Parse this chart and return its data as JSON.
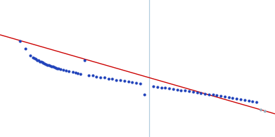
{
  "background_color": "#ffffff",
  "scatter_color": "#2244bb",
  "line_color": "#cc0000",
  "vline_color": "#b0ccdd",
  "figsize": [
    4.0,
    2.0
  ],
  "dpi": 100,
  "scatter_points": [
    [
      0.055,
      0.545
    ],
    [
      0.075,
      0.515
    ],
    [
      0.095,
      0.49
    ],
    [
      0.105,
      0.482
    ],
    [
      0.11,
      0.478
    ],
    [
      0.115,
      0.476
    ],
    [
      0.12,
      0.472
    ],
    [
      0.125,
      0.47
    ],
    [
      0.13,
      0.467
    ],
    [
      0.135,
      0.465
    ],
    [
      0.14,
      0.463
    ],
    [
      0.145,
      0.46
    ],
    [
      0.15,
      0.458
    ],
    [
      0.155,
      0.456
    ],
    [
      0.16,
      0.454
    ],
    [
      0.165,
      0.452
    ],
    [
      0.17,
      0.45
    ],
    [
      0.175,
      0.449
    ],
    [
      0.18,
      0.447
    ],
    [
      0.185,
      0.446
    ],
    [
      0.19,
      0.443
    ],
    [
      0.195,
      0.44
    ],
    [
      0.2,
      0.44
    ],
    [
      0.21,
      0.437
    ],
    [
      0.22,
      0.436
    ],
    [
      0.23,
      0.433
    ],
    [
      0.24,
      0.43
    ],
    [
      0.255,
      0.427
    ],
    [
      0.265,
      0.425
    ],
    [
      0.275,
      0.422
    ],
    [
      0.285,
      0.42
    ],
    [
      0.3,
      0.47
    ],
    [
      0.315,
      0.415
    ],
    [
      0.33,
      0.413
    ],
    [
      0.345,
      0.41
    ],
    [
      0.36,
      0.407
    ],
    [
      0.375,
      0.405
    ],
    [
      0.39,
      0.402
    ],
    [
      0.405,
      0.4
    ],
    [
      0.42,
      0.397
    ],
    [
      0.435,
      0.395
    ],
    [
      0.45,
      0.392
    ],
    [
      0.465,
      0.39
    ],
    [
      0.48,
      0.387
    ],
    [
      0.495,
      0.385
    ],
    [
      0.51,
      0.382
    ],
    [
      0.525,
      0.34
    ],
    [
      0.56,
      0.373
    ],
    [
      0.575,
      0.37
    ],
    [
      0.59,
      0.368
    ],
    [
      0.605,
      0.366
    ],
    [
      0.62,
      0.364
    ],
    [
      0.635,
      0.362
    ],
    [
      0.65,
      0.36
    ],
    [
      0.665,
      0.358
    ],
    [
      0.68,
      0.356
    ],
    [
      0.695,
      0.353
    ],
    [
      0.71,
      0.351
    ],
    [
      0.725,
      0.349
    ],
    [
      0.74,
      0.347
    ],
    [
      0.755,
      0.344
    ],
    [
      0.77,
      0.342
    ],
    [
      0.785,
      0.34
    ],
    [
      0.8,
      0.338
    ],
    [
      0.815,
      0.335
    ],
    [
      0.83,
      0.333
    ],
    [
      0.845,
      0.331
    ],
    [
      0.86,
      0.328
    ],
    [
      0.875,
      0.326
    ],
    [
      0.89,
      0.323
    ],
    [
      0.905,
      0.321
    ],
    [
      0.92,
      0.318
    ],
    [
      0.935,
      0.315
    ],
    [
      0.95,
      0.312
    ],
    [
      0.965,
      0.285
    ],
    [
      0.98,
      0.278
    ]
  ],
  "last_point_color": "#99aabb",
  "line_x": [
    -0.02,
    1.02
  ],
  "line_y": [
    0.568,
    0.268
  ],
  "vline_x": 0.545,
  "xlim": [
    -0.02,
    1.02
  ],
  "ylim": [
    0.18,
    0.7
  ]
}
